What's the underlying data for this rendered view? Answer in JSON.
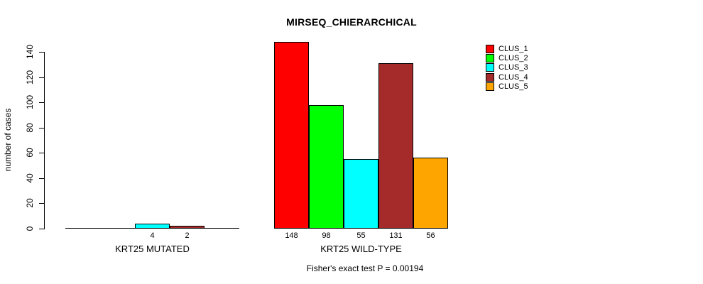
{
  "chart_data": {
    "type": "bar",
    "title": "MIRSEQ_CHIERARCHICAL",
    "ylabel": "number of cases",
    "caption": "Fisher's exact test P = 0.00194",
    "ylim": [
      0,
      140
    ],
    "yticks": [
      0,
      20,
      40,
      60,
      80,
      100,
      120,
      140
    ],
    "grid": false,
    "legend_position": "right",
    "legend": [
      {
        "label": "CLUS_1",
        "color": "#FF0000"
      },
      {
        "label": "CLUS_2",
        "color": "#00FF00"
      },
      {
        "label": "CLUS_3",
        "color": "#00FFFF"
      },
      {
        "label": "CLUS_4",
        "color": "#A52A2A"
      },
      {
        "label": "CLUS_5",
        "color": "#FFA500"
      }
    ],
    "groups": [
      {
        "label": "KRT25 MUTATED",
        "values": [
          0,
          0,
          4,
          2,
          0
        ],
        "value_labels": [
          "",
          "",
          "4",
          "2",
          ""
        ]
      },
      {
        "label": "KRT25 WILD-TYPE",
        "values": [
          148,
          98,
          55,
          131,
          56
        ],
        "value_labels": [
          "148",
          "98",
          "55",
          "131",
          "56"
        ]
      }
    ],
    "axis_color": "#000000",
    "text_color": "#000000"
  }
}
